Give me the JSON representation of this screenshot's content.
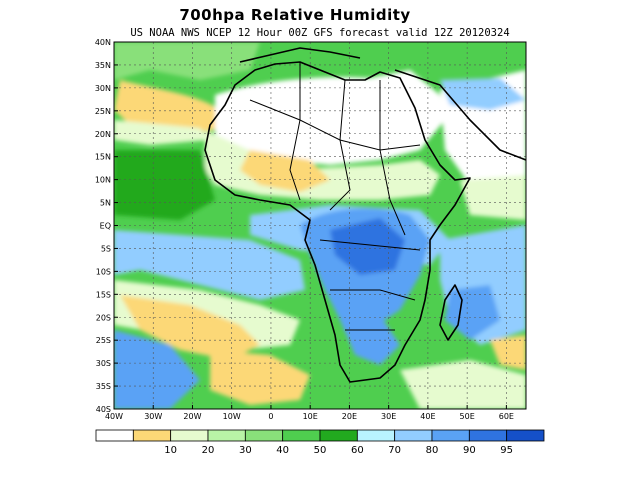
{
  "title": "700hpa Relative Humidity",
  "subtitle": "US NOAA NWS NCEP 12 Hour 00Z GFS forecast valid 12Z 20120324",
  "map": {
    "lon_range": [
      -40,
      65
    ],
    "lat_range": [
      -40,
      40
    ],
    "lat_ticks": [
      {
        "value": 40,
        "label": "40N"
      },
      {
        "value": 35,
        "label": "35N"
      },
      {
        "value": 30,
        "label": "30N"
      },
      {
        "value": 25,
        "label": "25N"
      },
      {
        "value": 20,
        "label": "20N"
      },
      {
        "value": 15,
        "label": "15N"
      },
      {
        "value": 10,
        "label": "10N"
      },
      {
        "value": 5,
        "label": "5N"
      },
      {
        "value": 0,
        "label": "EQ"
      },
      {
        "value": -5,
        "label": "5S"
      },
      {
        "value": -10,
        "label": "10S"
      },
      {
        "value": -15,
        "label": "15S"
      },
      {
        "value": -20,
        "label": "20S"
      },
      {
        "value": -25,
        "label": "25S"
      },
      {
        "value": -30,
        "label": "30S"
      },
      {
        "value": -35,
        "label": "35S"
      },
      {
        "value": -40,
        "label": "40S"
      }
    ],
    "lon_ticks": [
      {
        "value": -40,
        "label": "40W"
      },
      {
        "value": -30,
        "label": "30W"
      },
      {
        "value": -20,
        "label": "20W"
      },
      {
        "value": -10,
        "label": "10W"
      },
      {
        "value": 0,
        "label": "0"
      },
      {
        "value": 10,
        "label": "10E"
      },
      {
        "value": 20,
        "label": "20E"
      },
      {
        "value": 30,
        "label": "30E"
      },
      {
        "value": 40,
        "label": "40E"
      },
      {
        "value": 50,
        "label": "50E"
      },
      {
        "value": 60,
        "label": "60E"
      }
    ]
  },
  "colorbar": {
    "colors": [
      "#ffffff",
      "#fcd877",
      "#e6fbcf",
      "#b9f3a6",
      "#89e07a",
      "#4fce4f",
      "#22a91f",
      "#b9f3ff",
      "#92cdff",
      "#5aa2f5",
      "#2f73e0",
      "#1550c8"
    ],
    "labels": [
      "10",
      "20",
      "30",
      "40",
      "50",
      "60",
      "70",
      "80",
      "90",
      "95"
    ]
  },
  "fields": {
    "sahara": "#ffffff",
    "sahel": "#e6fbcf",
    "dry_yellow": "#fcd877",
    "green_light": "#89e07a",
    "green_mid": "#4fce4f",
    "green_dark": "#22a91f",
    "congo_light": "#92cdff",
    "congo_mid": "#5aa2f5",
    "congo_dark": "#2f73e0"
  }
}
